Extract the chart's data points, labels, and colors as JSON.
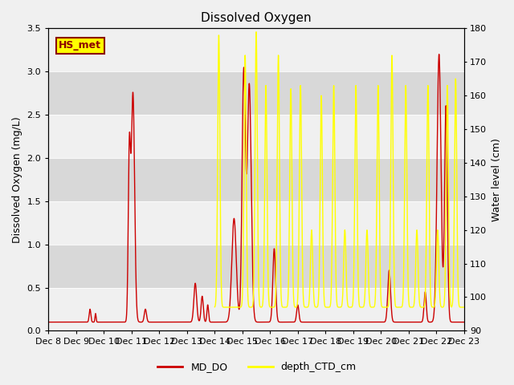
{
  "title": "Dissolved Oxygen",
  "ylabel_left": "Dissolved Oxygen (mg/L)",
  "ylabel_right": "Water level (cm)",
  "ylim_left": [
    0.0,
    3.5
  ],
  "ylim_right": [
    90,
    180
  ],
  "xlim": [
    8,
    23
  ],
  "xtick_labels": [
    "Dec 8",
    "Dec 9",
    "Dec 10",
    "Dec 11",
    "Dec 12",
    "Dec 13",
    "Dec 14",
    "Dec 15",
    "Dec 16",
    "Dec 17",
    "Dec 18",
    "Dec 19",
    "Dec 20",
    "Dec 21",
    "Dec 22",
    "Dec 23"
  ],
  "xtick_positions": [
    8,
    9,
    10,
    11,
    12,
    13,
    14,
    15,
    16,
    17,
    18,
    19,
    20,
    21,
    22,
    23
  ],
  "yticks_left": [
    0.0,
    0.5,
    1.0,
    1.5,
    2.0,
    2.5,
    3.0,
    3.5
  ],
  "yticks_right": [
    90,
    100,
    110,
    120,
    130,
    140,
    150,
    160,
    170,
    180
  ],
  "fig_bg_color": "#f0f0f0",
  "plot_bg_color": "#e8e8e8",
  "band_light": "#f0f0f0",
  "band_dark": "#d8d8d8",
  "legend_label": "HS_met",
  "legend_box_facecolor": "#ffff00",
  "legend_box_edgecolor": "#8B0000",
  "line1_color": "#cc0000",
  "line2_color": "#ffff00",
  "line1_label": "MD_DO",
  "line2_label": "depth_CTD_cm",
  "title_fontsize": 11,
  "axis_label_fontsize": 9,
  "tick_fontsize": 8
}
